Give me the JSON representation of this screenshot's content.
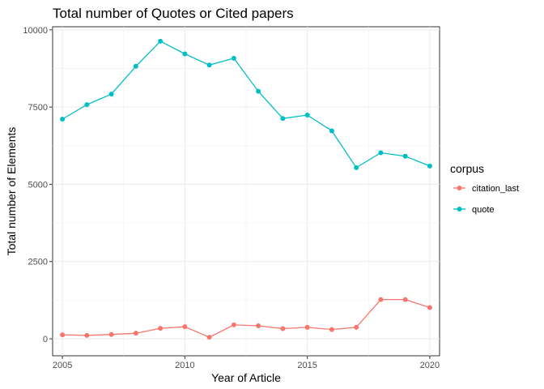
{
  "chart_data": {
    "type": "line",
    "title": "Total number of Quotes or Cited papers",
    "xlabel": "Year of Article",
    "ylabel": "Total number of Elements",
    "xlim": [
      2004.6,
      2020.4
    ],
    "ylim": [
      -550,
      10100
    ],
    "x_ticks": [
      2005,
      2010,
      2015,
      2020
    ],
    "y_ticks": [
      0,
      2500,
      5000,
      7500,
      10000
    ],
    "grid": true,
    "legend": {
      "title": "corpus",
      "position": "right"
    },
    "x": [
      2005,
      2006,
      2007,
      2008,
      2009,
      2010,
      2011,
      2012,
      2013,
      2014,
      2015,
      2016,
      2017,
      2018,
      2019,
      2020
    ],
    "series": [
      {
        "name": "citation_last",
        "color": "#F8766D",
        "values": [
          130,
          110,
          140,
          180,
          340,
          390,
          50,
          450,
          420,
          330,
          370,
          300,
          370,
          1270,
          1270,
          1010
        ]
      },
      {
        "name": "quote",
        "color": "#00BFC4",
        "values": [
          7110,
          7580,
          7920,
          8820,
          9630,
          9220,
          8860,
          9080,
          8010,
          7130,
          7240,
          6730,
          5540,
          6020,
          5910,
          5590
        ]
      }
    ]
  }
}
